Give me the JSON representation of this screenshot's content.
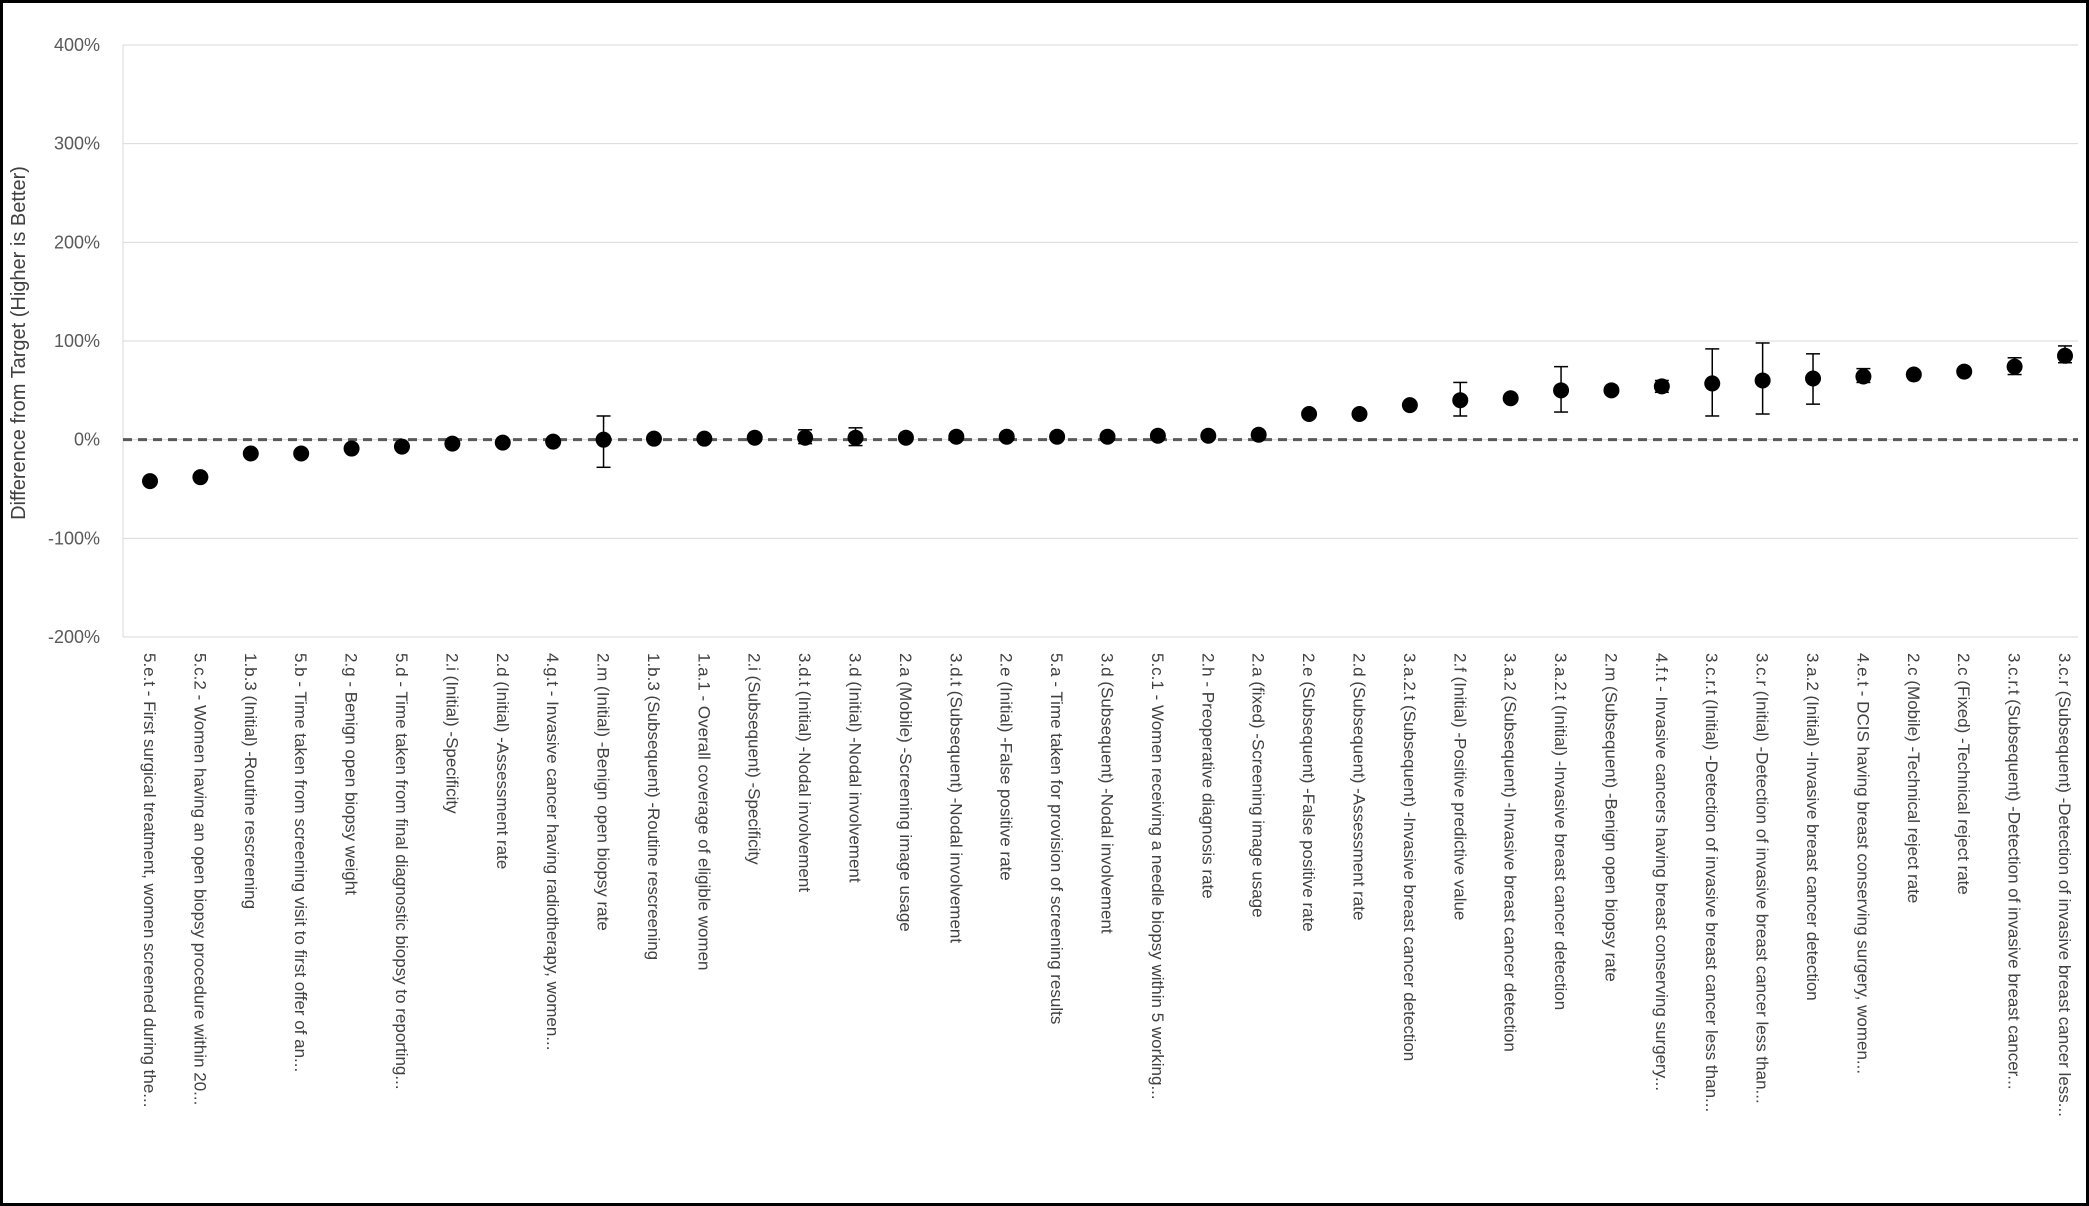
{
  "chart_data": {
    "type": "scatter",
    "title": "",
    "xlabel": "",
    "ylabel": "Difference from Target (Higher is Better)",
    "ylim": [
      -200,
      400
    ],
    "yticks": [
      -200,
      -100,
      0,
      100,
      200,
      300,
      400
    ],
    "ytick_labels": [
      "-200%",
      "-100%",
      "0%",
      "100%",
      "200%",
      "300%",
      "400%"
    ],
    "grid": "horizontal",
    "reference_line": 0,
    "marker_color": "#000000",
    "reference_line_color": "#595959",
    "categories": [
      "5.e.t - First surgical treatment, women screened during the...",
      "5.c.2 - Women having an open biopsy procedure within 20...",
      "1.b.3 (Initial) -Routine rescreening",
      "5.b - Time taken from screening visit to first offer of an...",
      "2.g - Benign open biopsy weight",
      "5.d - Time taken from final diagnostic biopsy to reporting...",
      "2.i (Initial) -Specificity",
      "2.d (Initial) -Assessment rate",
      "4.g.t - Invasive cancer having radiotherapy, women...",
      "2.m (Initial) -Benign open biopsy rate",
      "1.b.3 (Subsequent) -Routine rescreening",
      "1.a.1 - Overall coverage of eligible women",
      "2.i (Subsequent) -Specificity",
      "3.d.t (Initial) -Nodal involvement",
      "3.d (Initial) -Nodal involvement",
      "2.a (Mobile) -Screening image usage",
      "3.d.t (Subsequent) -Nodal involvement",
      "2.e (Initial) -False positive rate",
      "5.a - Time taken for provision of screening results",
      "3.d (Subsequent) -Nodal involvement",
      "5.c.1 - Women receiving a needle biopsy within 5 working...",
      "2.h - Preoperative diagnosis rate",
      "2.a (fixed) -Screening image usage",
      "2.e (Subsequent) -False positive rate",
      "2.d (Subsequent) -Assessment rate",
      "3.a.2.t (Subsequent) -Invasive breast cancer detection",
      "2.f (Initial) -Positive predictive value",
      "3.a.2 (Subsequent) -Invasive breast cancer detection",
      "3.a.2.t (Initial) -Invasive breast cancer detection",
      "2.m (Subsequent) -Benign open biopsy rate",
      "4.f.t - Invasive cancers having breast conserving surgery...",
      "3.c.r.t (Initial) -Detection of invasive breast cancer less than...",
      "3.c.r (Initial) -Detection of invasive breast cancer less than...",
      "3.a.2 (Initial) -Invasive breast cancer detection",
      "4.e.t - DCIS having breast conserving surgery, women...",
      "2.c (Mobile) -Technical reject rate",
      "2.c (Fixed) -Technical reject rate",
      "3.c.r.t (Subsequent) -Detection of invasive breast cancer...",
      "3.c.r (Subsequent) -Detection of invasive breast cancer less..."
    ],
    "series": [
      {
        "values": [
          -42,
          -38,
          -14,
          -14,
          -9,
          -7,
          -4,
          -3,
          -2,
          0,
          1,
          1,
          2,
          2,
          2,
          2,
          3,
          3,
          3,
          3,
          4,
          4,
          5,
          26,
          26,
          35,
          40,
          42,
          50,
          50,
          54,
          57,
          60,
          62,
          64,
          66,
          69,
          74,
          85
        ],
        "error_low": [
          0,
          0,
          0,
          0,
          0,
          0,
          0,
          0,
          0,
          -28,
          0,
          0,
          0,
          -4,
          -6,
          0,
          0,
          0,
          0,
          0,
          0,
          0,
          0,
          0,
          0,
          0,
          24,
          0,
          28,
          0,
          48,
          24,
          26,
          36,
          58,
          0,
          0,
          66,
          78
        ],
        "error_high": [
          0,
          0,
          0,
          0,
          0,
          0,
          0,
          0,
          0,
          24,
          0,
          0,
          0,
          10,
          12,
          0,
          0,
          0,
          0,
          0,
          0,
          0,
          0,
          0,
          0,
          0,
          58,
          0,
          74,
          0,
          60,
          92,
          98,
          87,
          72,
          0,
          0,
          83,
          95
        ]
      }
    ]
  }
}
